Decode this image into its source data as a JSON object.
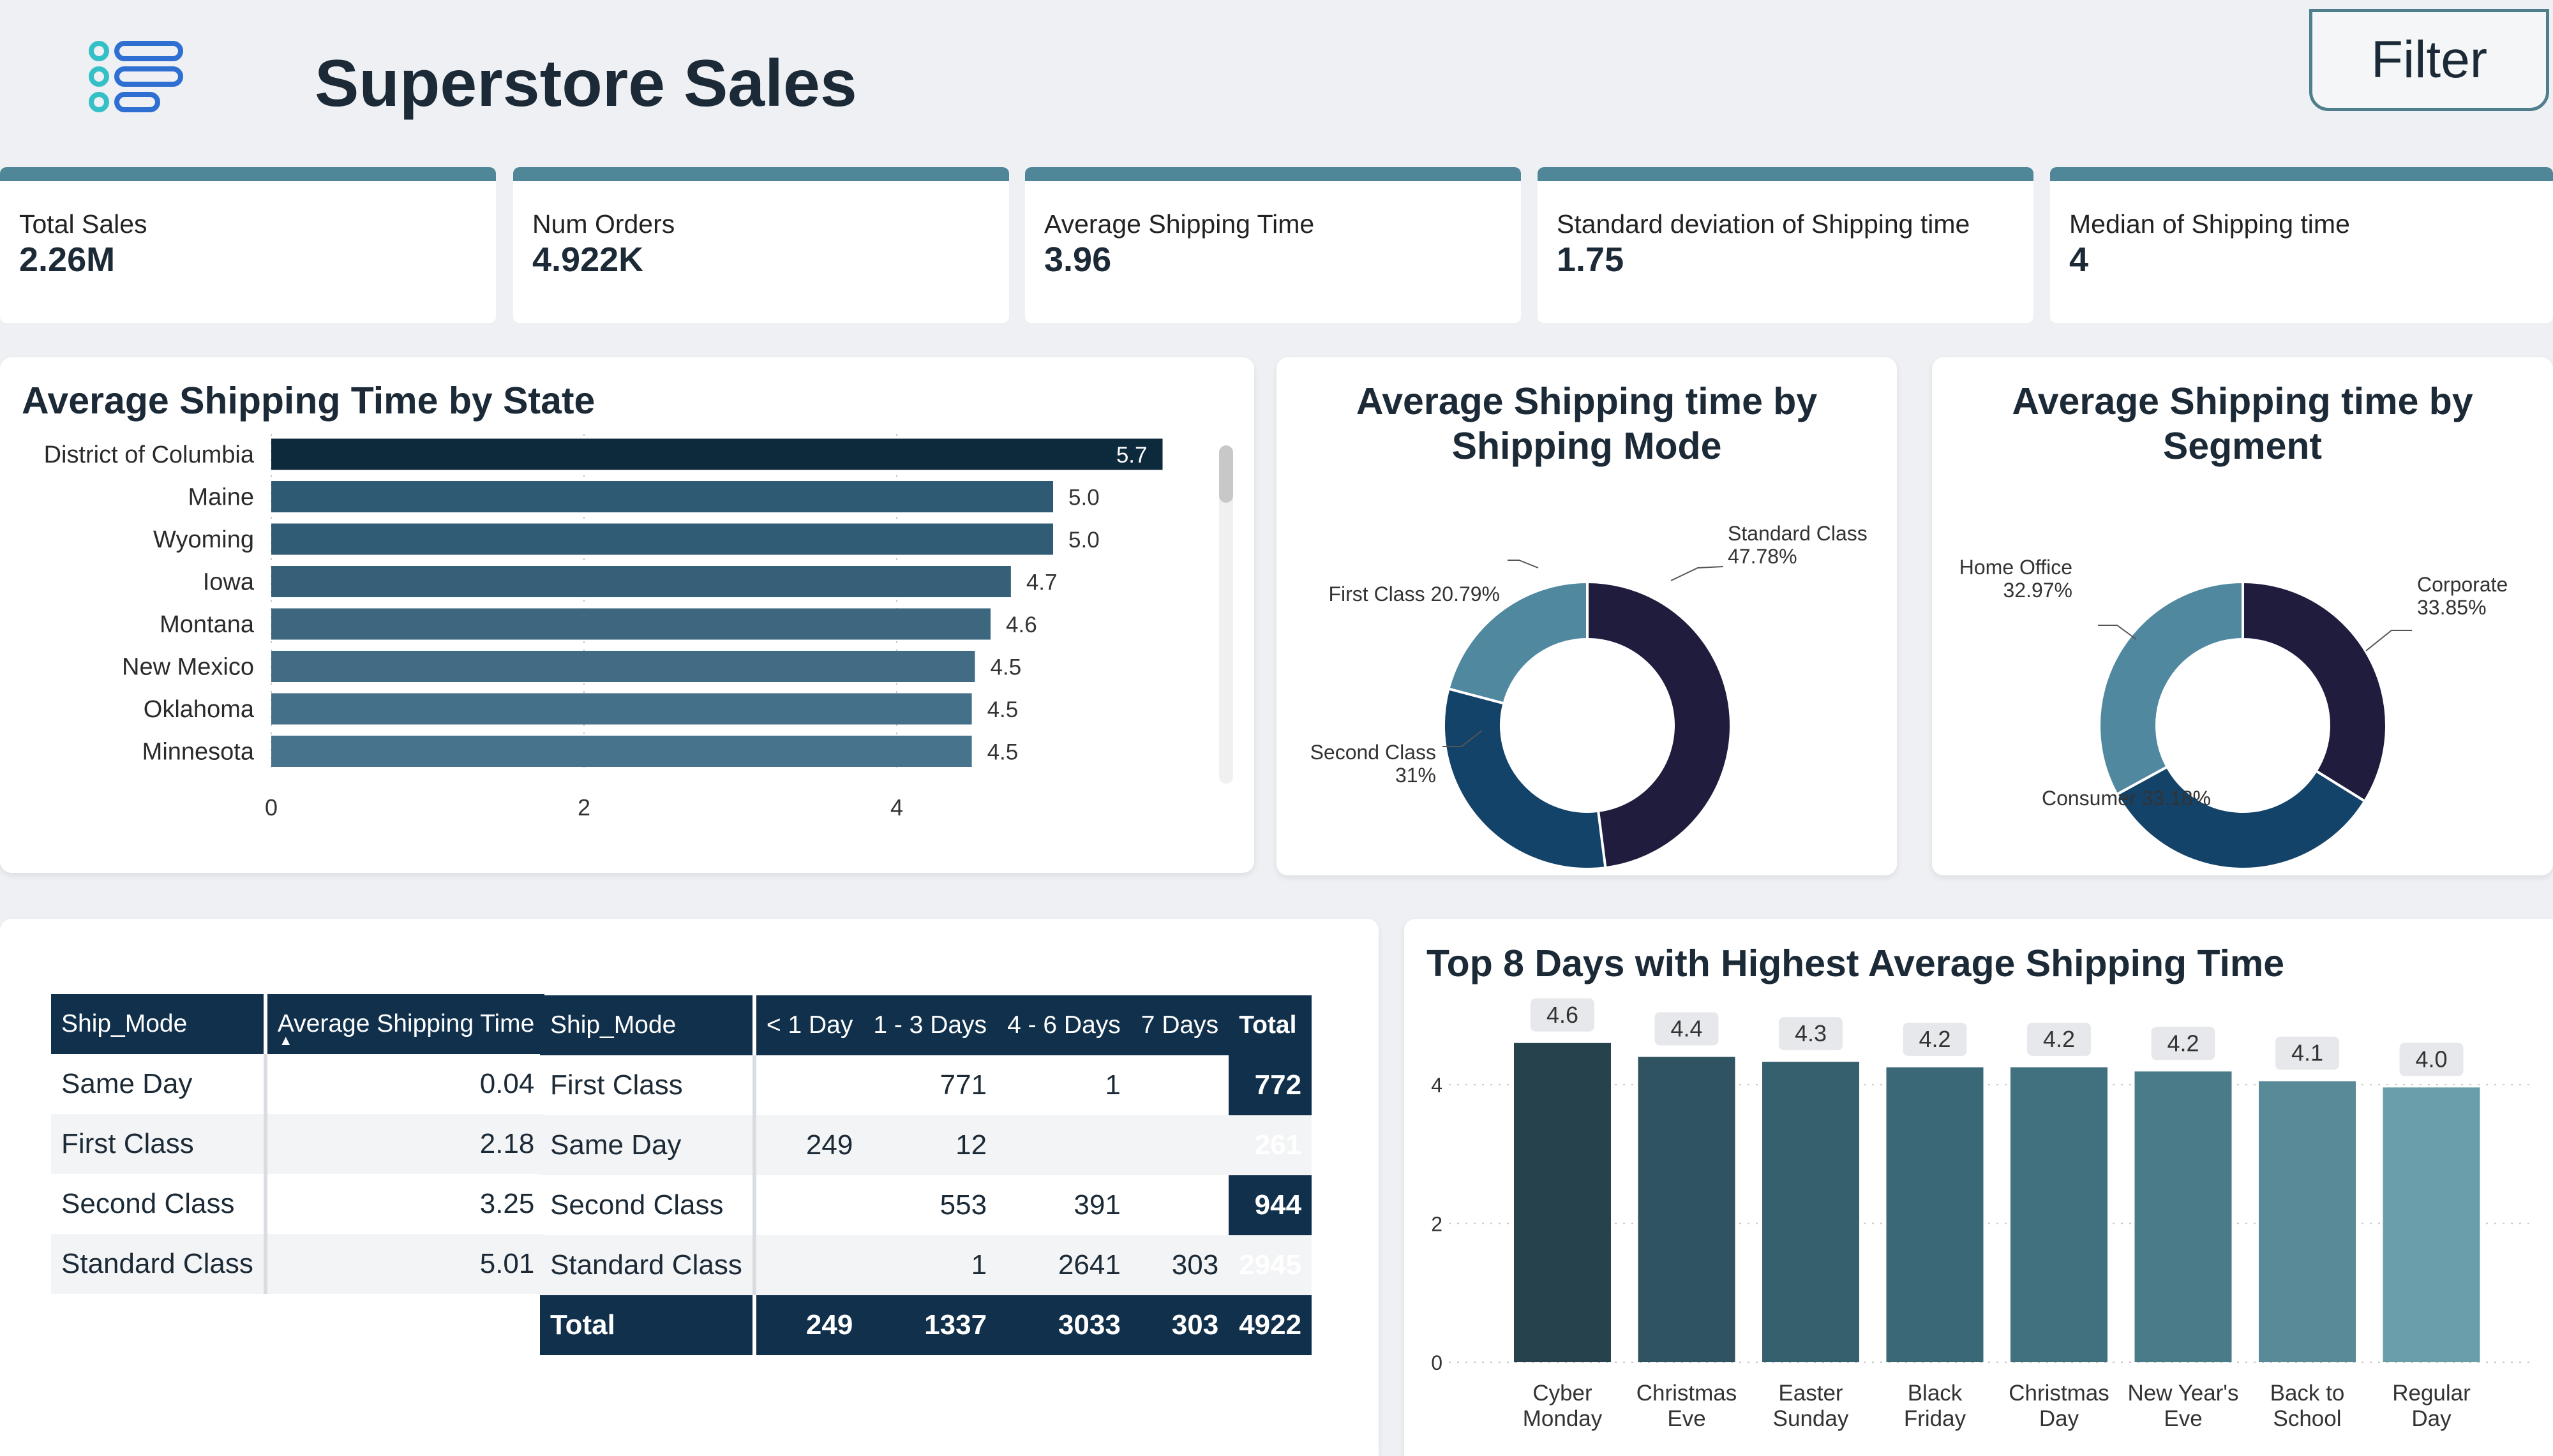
{
  "header": {
    "title": "Superstore Sales",
    "filter_label": "Filter",
    "menu_icon": "list-menu-icon"
  },
  "kpis": [
    {
      "label": "Total Sales",
      "value": "2.26M"
    },
    {
      "label": "Num Orders",
      "value": "4.922K"
    },
    {
      "label": "Average Shipping Time",
      "value": "3.96"
    },
    {
      "label": "Standard deviation of Shipping time",
      "value": "1.75"
    },
    {
      "label": "Median of Shipping time",
      "value": "4"
    }
  ],
  "state_chart": {
    "title": "Average Shipping Time by State",
    "ticks": [
      "0",
      "2",
      "4"
    ],
    "xlim": [
      0,
      6
    ],
    "bars": [
      {
        "label": "District of Columbia",
        "value": 5.7,
        "text": "5.7",
        "color": "#0d2a3d"
      },
      {
        "label": "Maine",
        "value": 5.0,
        "text": "5.0",
        "color": "#2e5a74"
      },
      {
        "label": "Wyoming",
        "value": 5.0,
        "text": "5.0",
        "color": "#305c76"
      },
      {
        "label": "Iowa",
        "value": 4.73,
        "text": "4.7",
        "color": "#365f78"
      },
      {
        "label": "Montana",
        "value": 4.6,
        "text": "4.6",
        "color": "#3d677f"
      },
      {
        "label": "New Mexico",
        "value": 4.5,
        "text": "4.5",
        "color": "#426c84"
      },
      {
        "label": "Oklahoma",
        "value": 4.48,
        "text": "4.5",
        "color": "#45708a"
      },
      {
        "label": "Minnesota",
        "value": 4.48,
        "text": "4.5",
        "color": "#48738d"
      }
    ]
  },
  "mode_chart": {
    "title_line1": "Average Shipping time by",
    "title_line2": "Shipping Mode",
    "slices": [
      {
        "name": "Standard Class",
        "pct": "47.78%",
        "value": 47.78,
        "color": "#201c3e"
      },
      {
        "name": "Second Class",
        "pct": "31%",
        "value": 31.0,
        "color": "#14436a"
      },
      {
        "name": "First Class",
        "pct": "20.79%",
        "value": 20.79,
        "color": "#5088a0"
      }
    ]
  },
  "segment_chart": {
    "title_line1": "Average Shipping time by",
    "title_line2": "Segment",
    "slices": [
      {
        "name": "Corporate",
        "pct": "33.85%",
        "value": 33.85,
        "color": "#201c3e"
      },
      {
        "name": "Consumer",
        "pct": "33.18%",
        "value": 33.18,
        "color": "#14436a"
      },
      {
        "name": "Home Office",
        "pct": "32.97%",
        "value": 32.97,
        "color": "#5088a0"
      }
    ]
  },
  "avg_table": {
    "headers": [
      "Ship_Mode",
      "Average Shipping Time"
    ],
    "rows": [
      [
        "Same Day",
        "0.04"
      ],
      [
        "First Class",
        "2.18"
      ],
      [
        "Second Class",
        "3.25"
      ],
      [
        "Standard Class",
        "5.01"
      ]
    ]
  },
  "matrix_table": {
    "headers": [
      "Ship_Mode",
      "< 1 Day",
      "1 - 3 Days",
      "4 - 6 Days",
      "7 Days",
      "Total"
    ],
    "rows": [
      [
        "First Class",
        "",
        "771",
        "1",
        "",
        "772"
      ],
      [
        "Same Day",
        "249",
        "12",
        "",
        "",
        "261"
      ],
      [
        "Second Class",
        "",
        "553",
        "391",
        "",
        "944"
      ],
      [
        "Standard Class",
        "",
        "1",
        "2641",
        "303",
        "2945"
      ]
    ],
    "total": [
      "Total",
      "249",
      "1337",
      "3033",
      "303",
      "4922"
    ]
  },
  "days_chart": {
    "title": "Top 8 Days with Highest Average Shipping Time",
    "ylim": [
      0,
      5
    ],
    "ticks": [
      "0",
      "2",
      "4"
    ],
    "bars": [
      {
        "line1": "Cyber",
        "line2": "Monday",
        "value": 4.6,
        "text": "4.6",
        "color": "#26424c"
      },
      {
        "line1": "Christmas",
        "line2": "Eve",
        "value": 4.4,
        "text": "4.4",
        "color": "#2f5360"
      },
      {
        "line1": "Easter",
        "line2": "Sunday",
        "value": 4.33,
        "text": "4.3",
        "color": "#35606e"
      },
      {
        "line1": "Black",
        "line2": "Friday",
        "value": 4.25,
        "text": "4.2",
        "color": "#3a6876"
      },
      {
        "line1": "Christmas",
        "line2": "Day",
        "value": 4.25,
        "text": "4.2",
        "color": "#41717f"
      },
      {
        "line1": "New Year's",
        "line2": "Eve",
        "value": 4.19,
        "text": "4.2",
        "color": "#497b89"
      },
      {
        "line1": "Back to",
        "line2": "School",
        "value": 4.05,
        "text": "4.1",
        "color": "#588a98"
      },
      {
        "line1": "Regular",
        "line2": "Day",
        "value": 3.96,
        "text": "4.0",
        "color": "#6a9eab"
      }
    ]
  }
}
